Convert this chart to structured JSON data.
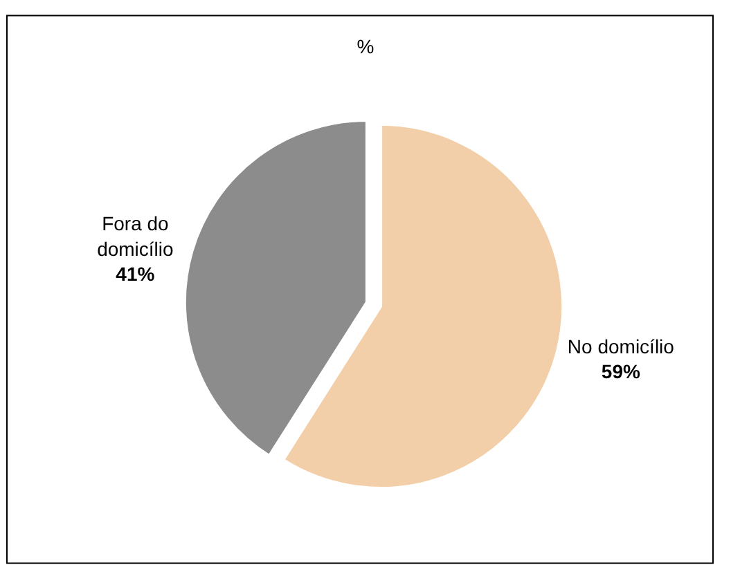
{
  "chart_data": {
    "type": "pie",
    "title": "%",
    "categories": [
      "No domicílio",
      "Fora do domicílio"
    ],
    "values": [
      59,
      41
    ],
    "value_labels": [
      "59%",
      "41%"
    ],
    "colors": [
      "#f2cfa8",
      "#8c8c8c"
    ],
    "legend": false
  }
}
